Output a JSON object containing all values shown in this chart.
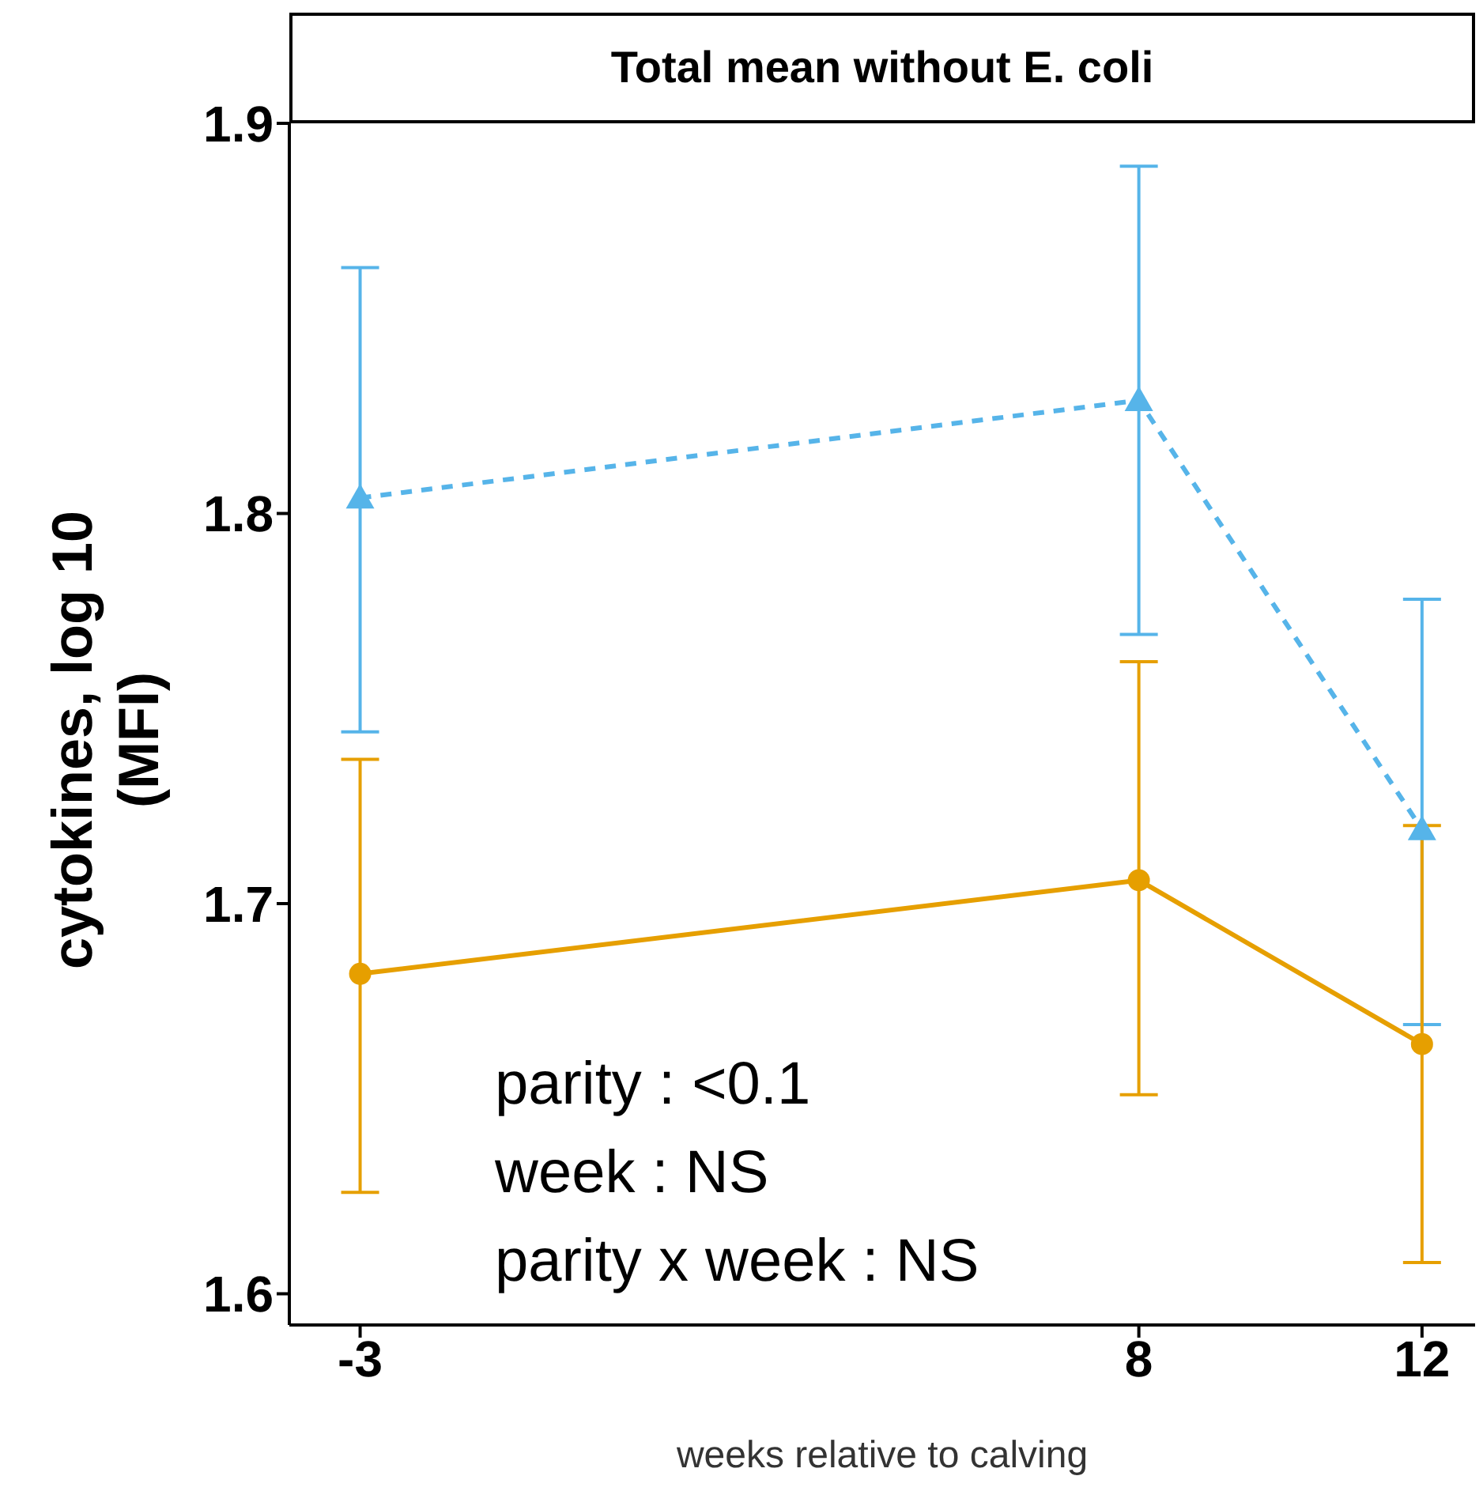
{
  "chart_data": {
    "type": "line",
    "title": "Total mean without E. coli",
    "xlabel": "weeks relative to calving",
    "ylabel": "cytokines, log 10 (MFI)",
    "x": [
      -3,
      8,
      12
    ],
    "xlim": [
      -4,
      12.75
    ],
    "xticks": [
      -3,
      8,
      12
    ],
    "ylim": [
      1.592,
      1.9
    ],
    "yticks": [
      1.6,
      1.7,
      1.8,
      1.9
    ],
    "grid": false,
    "legend": false,
    "series": [
      {
        "color": "#56b4e9",
        "marker": "triangle",
        "line_style": "dashed",
        "values": [
          1.804,
          1.829,
          1.719
        ],
        "errors": [
          [
            1.744,
            1.863
          ],
          [
            1.769,
            1.889
          ],
          [
            1.669,
            1.778
          ]
        ]
      },
      {
        "color": "#e69f00",
        "marker": "circle",
        "line_style": "solid",
        "values": [
          1.682,
          1.706,
          1.664
        ],
        "errors": [
          [
            1.626,
            1.737
          ],
          [
            1.651,
            1.762
          ],
          [
            1.608,
            1.72
          ]
        ]
      }
    ],
    "annotations": [
      "parity : <0.1",
      "week : NS",
      "parity x week : NS"
    ]
  }
}
